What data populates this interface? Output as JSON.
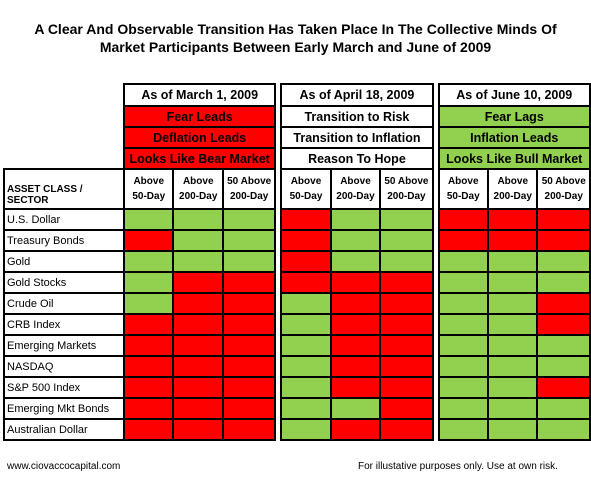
{
  "title_lines": [
    "A Clear And Observable Transition Has Taken Place In The Collective Minds Of",
    "Market Participants Between Early March and June of 2009"
  ],
  "periods": [
    {
      "header": "As of March 1, 2009",
      "labels": [
        {
          "text": "Fear Leads",
          "color": "#ff0000"
        },
        {
          "text": "Deflation Leads",
          "color": "#ff0000"
        },
        {
          "text": "Looks Like Bear Market",
          "color": "#ff0000"
        }
      ]
    },
    {
      "header": "As of April 18, 2009",
      "labels": [
        {
          "text": "Transition to Risk",
          "color": "#ffffff"
        },
        {
          "text": "Transition to Inflation",
          "color": "#ffffff"
        },
        {
          "text": "Reason To Hope",
          "color": "#ffffff"
        }
      ]
    },
    {
      "header": "As of June 10, 2009",
      "labels": [
        {
          "text": "Fear Lags",
          "color": "#92d050"
        },
        {
          "text": "Inflation Leads",
          "color": "#92d050"
        },
        {
          "text": "Looks Like Bull Market",
          "color": "#92d050"
        }
      ]
    }
  ],
  "column_headers": [
    [
      "Above",
      "50-Day"
    ],
    [
      "Above",
      "200-Day"
    ],
    [
      "50 Above",
      "200-Day"
    ]
  ],
  "asset_header": "ASSET CLASS / SECTOR",
  "colors": {
    "red": "#ff0000",
    "green": "#92d050"
  },
  "rows": [
    {
      "name": "U.S. Dollar",
      "cells": [
        "G",
        "G",
        "G",
        "R",
        "G",
        "G",
        "R",
        "R",
        "R"
      ]
    },
    {
      "name": "Treasury Bonds",
      "cells": [
        "R",
        "G",
        "G",
        "R",
        "G",
        "G",
        "R",
        "R",
        "R"
      ]
    },
    {
      "name": "Gold",
      "cells": [
        "G",
        "G",
        "G",
        "R",
        "G",
        "G",
        "G",
        "G",
        "G"
      ]
    },
    {
      "name": "Gold Stocks",
      "cells": [
        "G",
        "R",
        "R",
        "R",
        "R",
        "R",
        "G",
        "G",
        "G"
      ]
    },
    {
      "name": "Crude Oil",
      "cells": [
        "G",
        "R",
        "R",
        "G",
        "R",
        "R",
        "G",
        "G",
        "R"
      ]
    },
    {
      "name": "CRB Index",
      "cells": [
        "R",
        "R",
        "R",
        "G",
        "R",
        "R",
        "G",
        "G",
        "R"
      ]
    },
    {
      "name": "Emerging Markets",
      "cells": [
        "R",
        "R",
        "R",
        "G",
        "R",
        "R",
        "G",
        "G",
        "G"
      ]
    },
    {
      "name": "NASDAQ",
      "cells": [
        "R",
        "R",
        "R",
        "G",
        "R",
        "R",
        "G",
        "G",
        "G"
      ]
    },
    {
      "name": "S&P 500 Index",
      "cells": [
        "R",
        "R",
        "R",
        "G",
        "R",
        "R",
        "G",
        "G",
        "R"
      ]
    },
    {
      "name": "Emerging Mkt Bonds",
      "cells": [
        "R",
        "R",
        "R",
        "G",
        "G",
        "R",
        "G",
        "G",
        "G"
      ]
    },
    {
      "name": "Australian Dollar",
      "cells": [
        "R",
        "R",
        "R",
        "G",
        "R",
        "R",
        "G",
        "G",
        "G"
      ]
    }
  ],
  "footer_left": "www.ciovaccocapital.com",
  "footer_right": "For illustative purposes only.  Use at own risk."
}
